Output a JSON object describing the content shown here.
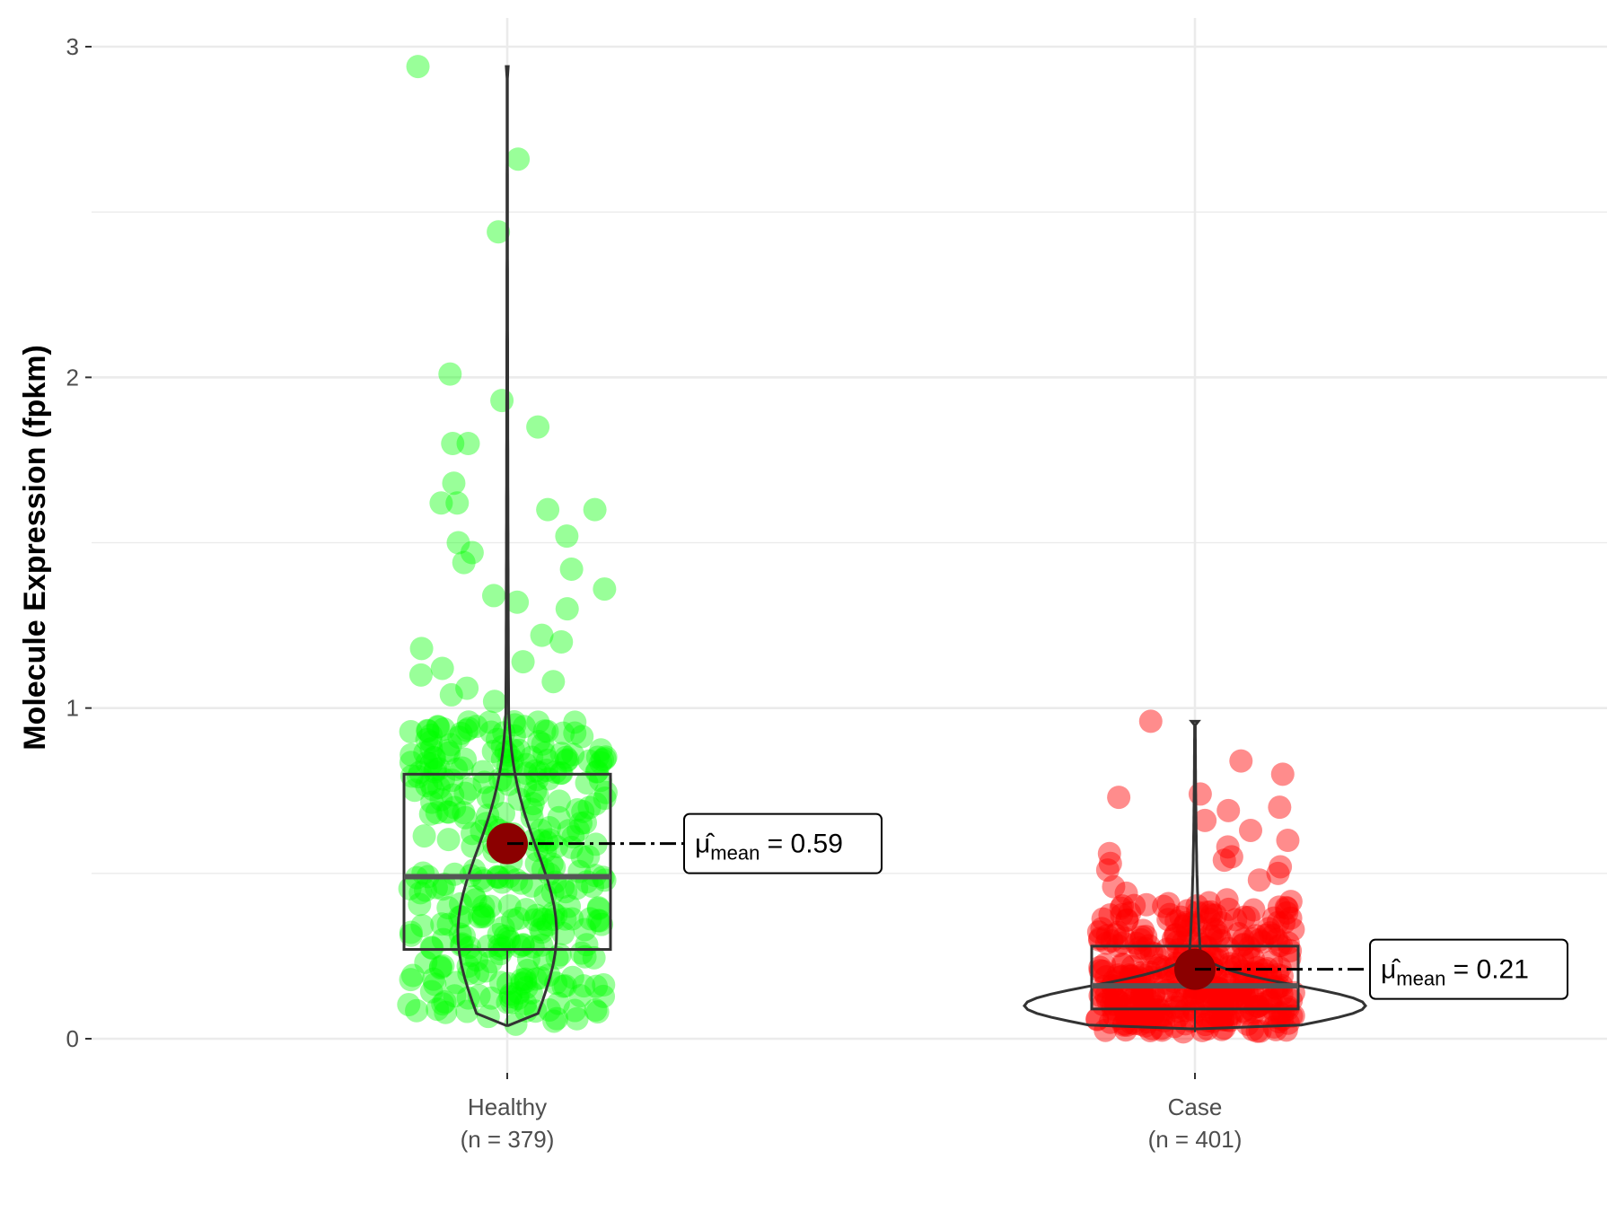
{
  "chart_data": {
    "type": "violin-box-scatter",
    "ylabel": "Molecule Expression (fpkm)",
    "ylim": [
      -0.12,
      3.09
    ],
    "y_ticks": [
      "0",
      "1",
      "2",
      "3"
    ],
    "grid": true,
    "groups": [
      {
        "name": "Healthy",
        "n_label": "(n = 379)",
        "n": 379,
        "color": "#00ff00",
        "box": {
          "q1": 0.27,
          "median": 0.49,
          "q3": 0.8,
          "whisker_low": 0.04,
          "whisker_high": 0.8
        },
        "violin_range": [
          0.04,
          2.94
        ],
        "mean": 0.59,
        "mean_label": "0.59",
        "outliers": [
          2.94,
          2.66,
          2.44,
          2.01,
          1.93,
          1.85,
          1.8,
          1.8,
          1.68,
          1.62,
          1.62,
          1.6,
          1.6,
          1.52,
          1.5,
          1.47,
          1.44,
          1.42,
          1.36,
          1.34,
          1.32,
          1.3,
          1.22,
          1.2,
          1.18,
          1.14,
          1.12,
          1.1,
          1.08,
          1.06,
          1.04,
          1.02
        ]
      },
      {
        "name": "Case",
        "n_label": "(n = 401)",
        "n": 401,
        "color": "#ff0000",
        "box": {
          "q1": 0.09,
          "median": 0.16,
          "q3": 0.28,
          "whisker_low": 0.02,
          "whisker_high": 0.28
        },
        "violin_range": [
          0.03,
          0.96
        ],
        "mean": 0.21,
        "mean_label": "0.21",
        "outliers": [
          0.96,
          0.84,
          0.8,
          0.74,
          0.73,
          0.7,
          0.69,
          0.66,
          0.63,
          0.6,
          0.58,
          0.56,
          0.55,
          0.54,
          0.53,
          0.52,
          0.51,
          0.5,
          0.48,
          0.46,
          0.44,
          0.42,
          0.4,
          0.38,
          0.36,
          0.34,
          0.32,
          0.3
        ]
      }
    ],
    "mean_symbol": "μ̂",
    "mean_subscript": "mean",
    "colors": {
      "mean_point": "#8b0000",
      "box_stroke": "#333333",
      "grid": "#ebebeb"
    }
  }
}
